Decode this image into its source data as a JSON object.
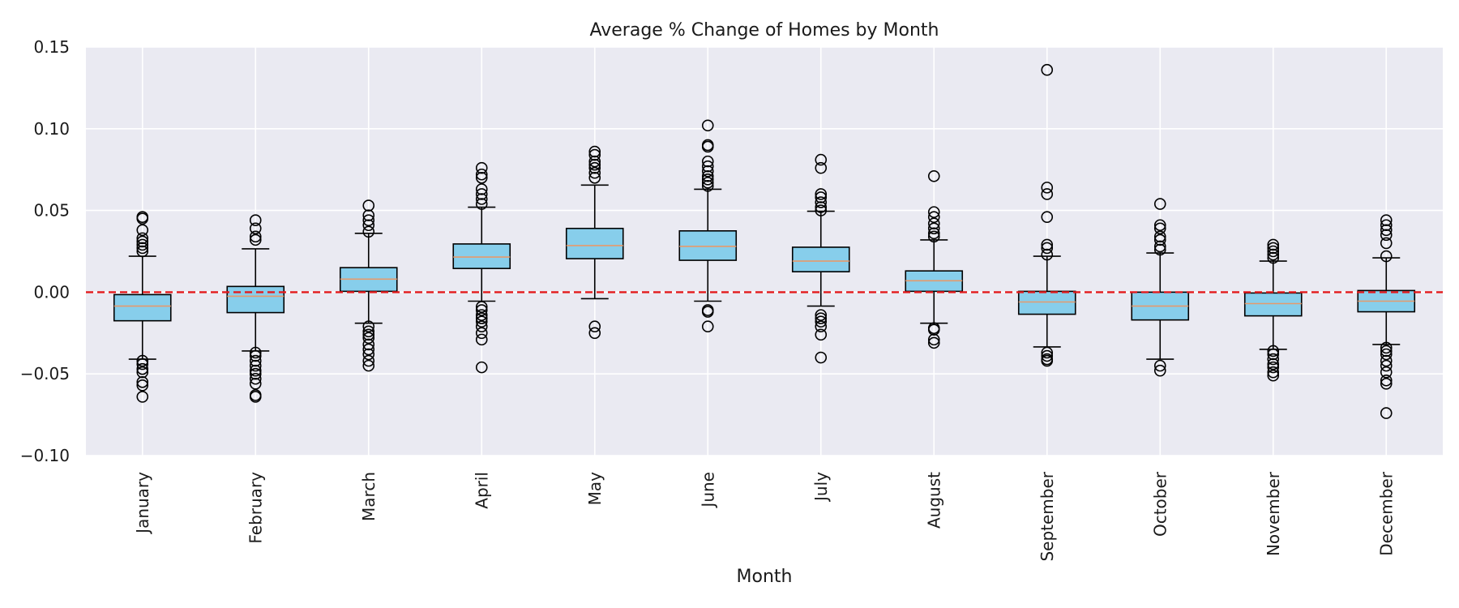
{
  "chart_data": {
    "type": "box",
    "title": "Average % Change of Homes by Month",
    "xlabel": "Month",
    "ylabel": "",
    "ylim": [
      -0.1,
      0.15
    ],
    "yticks": [
      -0.1,
      -0.05,
      0.0,
      0.05,
      0.1,
      0.15
    ],
    "ytick_labels": [
      "−0.10",
      "−0.05",
      "0.00",
      "0.05",
      "0.10",
      "0.15"
    ],
    "grid": true,
    "reference_line": {
      "y": 0.0,
      "style": "dashed",
      "color": "#e31a1c"
    },
    "colors": {
      "plot_background": "#eaeaf2",
      "grid": "#ffffff",
      "box_fill": "#87ceeb",
      "box_edge": "#000000",
      "median": "#e69a6c",
      "flier_edge": "#000000"
    },
    "categories": [
      "January",
      "February",
      "March",
      "April",
      "May",
      "June",
      "July",
      "August",
      "September",
      "October",
      "November",
      "December"
    ],
    "boxes": [
      {
        "q1": -0.0175,
        "median": -0.0085,
        "q3": -0.0015,
        "whisker_low": -0.041,
        "whisker_high": 0.022,
        "fliers": [
          0.046,
          0.045,
          0.038,
          0.033,
          0.031,
          0.029,
          0.027,
          0.025,
          -0.042,
          -0.044,
          -0.047,
          -0.049,
          -0.055,
          -0.057,
          -0.064
        ]
      },
      {
        "q1": -0.0125,
        "median": -0.0025,
        "q3": 0.0035,
        "whisker_low": -0.036,
        "whisker_high": 0.0265,
        "fliers": [
          0.044,
          0.039,
          0.034,
          0.032,
          -0.037,
          -0.039,
          -0.042,
          -0.045,
          -0.048,
          -0.05,
          -0.053,
          -0.056,
          -0.063,
          -0.064
        ]
      },
      {
        "q1": 0.0005,
        "median": 0.008,
        "q3": 0.015,
        "whisker_low": -0.019,
        "whisker_high": 0.036,
        "fliers": [
          0.053,
          0.047,
          0.044,
          0.041,
          0.037,
          -0.021,
          -0.024,
          -0.026,
          -0.028,
          -0.032,
          -0.035,
          -0.038,
          -0.042,
          -0.045
        ]
      },
      {
        "q1": 0.0145,
        "median": 0.0215,
        "q3": 0.0295,
        "whisker_low": -0.0055,
        "whisker_high": 0.052,
        "fliers": [
          0.076,
          0.072,
          0.07,
          0.063,
          0.06,
          0.057,
          0.054,
          -0.009,
          -0.011,
          -0.014,
          -0.016,
          -0.018,
          -0.021,
          -0.025,
          -0.029,
          -0.046
        ]
      },
      {
        "q1": 0.0205,
        "median": 0.0285,
        "q3": 0.039,
        "whisker_low": -0.004,
        "whisker_high": 0.0655,
        "fliers": [
          0.086,
          0.084,
          0.08,
          0.078,
          0.076,
          0.073,
          0.07,
          -0.021,
          -0.025
        ]
      },
      {
        "q1": 0.0195,
        "median": 0.028,
        "q3": 0.0375,
        "whisker_low": -0.0055,
        "whisker_high": 0.063,
        "fliers": [
          0.102,
          0.09,
          0.089,
          0.08,
          0.077,
          0.074,
          0.071,
          0.069,
          0.067,
          0.065,
          -0.011,
          -0.012,
          -0.021
        ]
      },
      {
        "q1": 0.0125,
        "median": 0.019,
        "q3": 0.0275,
        "whisker_low": -0.0085,
        "whisker_high": 0.0495,
        "fliers": [
          0.081,
          0.076,
          0.06,
          0.058,
          0.055,
          0.052,
          0.05,
          -0.014,
          -0.016,
          -0.018,
          -0.021,
          -0.026,
          -0.04
        ]
      },
      {
        "q1": 0.0005,
        "median": 0.007,
        "q3": 0.013,
        "whisker_low": -0.019,
        "whisker_high": 0.032,
        "fliers": [
          0.071,
          0.049,
          0.046,
          0.042,
          0.039,
          0.036,
          0.034,
          -0.022,
          -0.023,
          -0.029,
          -0.031
        ]
      },
      {
        "q1": -0.0135,
        "median": -0.006,
        "q3": 0.0005,
        "whisker_low": -0.0335,
        "whisker_high": 0.022,
        "fliers": [
          0.136,
          0.064,
          0.06,
          0.046,
          0.029,
          0.027,
          0.023,
          -0.037,
          -0.039,
          -0.041,
          -0.042
        ]
      },
      {
        "q1": -0.017,
        "median": -0.0085,
        "q3": 0.0,
        "whisker_low": -0.041,
        "whisker_high": 0.024,
        "fliers": [
          0.054,
          0.041,
          0.039,
          0.034,
          0.032,
          0.028,
          0.026,
          -0.045,
          -0.048
        ]
      },
      {
        "q1": -0.0145,
        "median": -0.007,
        "q3": -0.0005,
        "whisker_low": -0.035,
        "whisker_high": 0.019,
        "fliers": [
          0.029,
          0.027,
          0.025,
          0.023,
          0.021,
          -0.036,
          -0.038,
          -0.041,
          -0.044,
          -0.046,
          -0.049,
          -0.051
        ]
      },
      {
        "q1": -0.012,
        "median": -0.0055,
        "q3": 0.001,
        "whisker_low": -0.032,
        "whisker_high": 0.021,
        "fliers": [
          0.044,
          0.041,
          0.038,
          0.035,
          0.03,
          0.022,
          -0.034,
          -0.036,
          -0.038,
          -0.042,
          -0.045,
          -0.049,
          -0.054,
          -0.056,
          -0.074
        ]
      }
    ]
  }
}
